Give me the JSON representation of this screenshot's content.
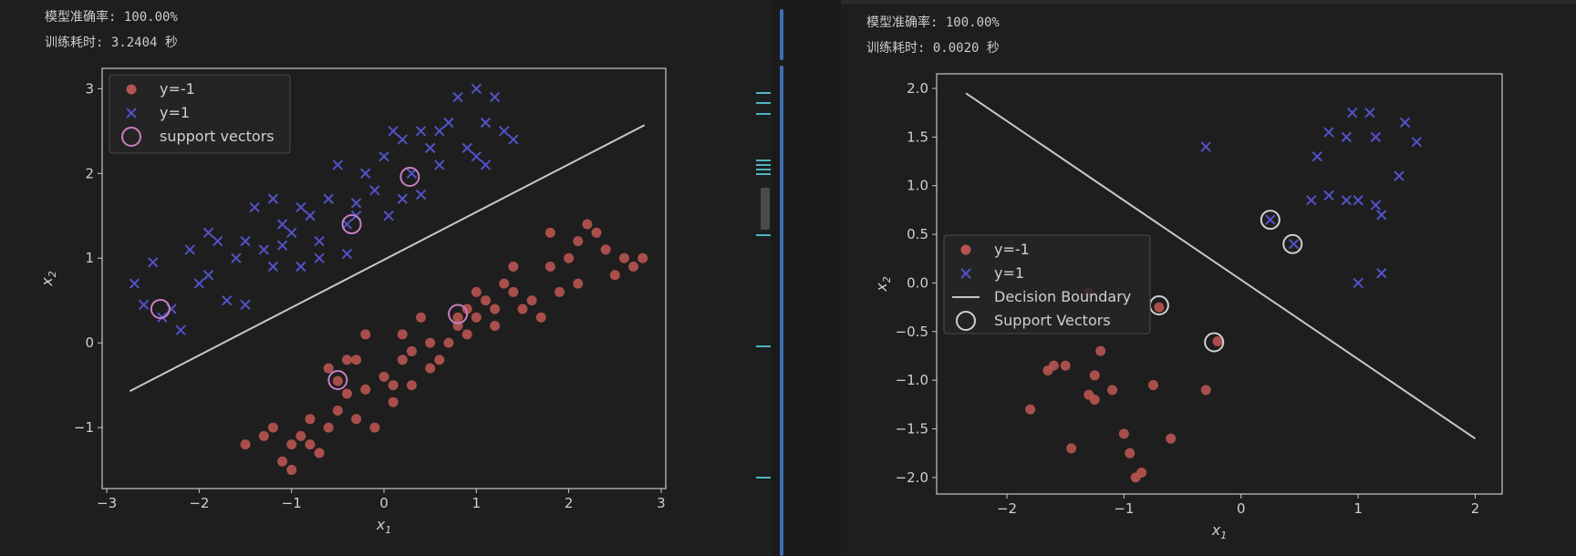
{
  "left_output": {
    "accuracy_line": "模型准确率: 100.00%",
    "time_line": "训练耗时: 3.2404 秒"
  },
  "right_output": {
    "accuracy_line": "模型准确率: 100.00%",
    "time_line": "训练耗时: 0.0020 秒"
  },
  "colors": {
    "neg": "#b85450",
    "pos": "#5252c8",
    "line": "#c8c8c8",
    "sv_left": "#c67fbf",
    "sv_right": "#d0d0d0"
  },
  "chart_data": [
    {
      "type": "scatter",
      "xlabel": "x1",
      "ylabel": "x2",
      "xlim": [
        -3.05,
        3.05
      ],
      "ylim": [
        -1.72,
        3.24
      ],
      "xticks": [
        -3,
        -2,
        -1,
        0,
        1,
        2,
        3
      ],
      "yticks": [
        -1,
        0,
        1,
        2,
        3
      ],
      "legend": {
        "position": "top-left",
        "entries": [
          "y=-1",
          "y=1",
          "support vectors"
        ]
      },
      "grid": false,
      "series": [
        {
          "name": "y=-1",
          "marker": "circle",
          "points": [
            [
              -0.6,
              -0.3
            ],
            [
              -0.3,
              -0.2
            ],
            [
              -0.5,
              -0.45
            ],
            [
              -0.4,
              -0.6
            ],
            [
              -0.2,
              -0.55
            ],
            [
              0,
              -0.4
            ],
            [
              0.1,
              -0.5
            ],
            [
              0.2,
              -0.2
            ],
            [
              0.3,
              -0.1
            ],
            [
              0.5,
              0
            ],
            [
              0.6,
              -0.2
            ],
            [
              0.8,
              0.2
            ],
            [
              0.9,
              0.1
            ],
            [
              1.0,
              0.3
            ],
            [
              1.1,
              0.5
            ],
            [
              1.2,
              0.4
            ],
            [
              1.3,
              0.7
            ],
            [
              1.4,
              0.6
            ],
            [
              1.6,
              0.5
            ],
            [
              1.8,
              0.9
            ],
            [
              2.0,
              1.0
            ],
            [
              2.1,
              1.2
            ],
            [
              2.2,
              1.4
            ],
            [
              2.3,
              1.3
            ],
            [
              2.5,
              0.8
            ],
            [
              2.7,
              0.9
            ],
            [
              2.8,
              1.0
            ],
            [
              -1.2,
              -1.0
            ],
            [
              -1.0,
              -1.2
            ],
            [
              -0.9,
              -1.1
            ],
            [
              -0.7,
              -1.3
            ],
            [
              -0.6,
              -1.0
            ],
            [
              -0.8,
              -0.9
            ],
            [
              -1.1,
              -1.4
            ],
            [
              -1.3,
              -1.1
            ],
            [
              -1.5,
              -1.2
            ],
            [
              -0.5,
              -0.8
            ],
            [
              -0.3,
              -0.9
            ],
            [
              -0.1,
              -1.0
            ],
            [
              0.1,
              -0.7
            ],
            [
              0.3,
              -0.5
            ],
            [
              0.5,
              -0.3
            ],
            [
              0.7,
              0
            ],
            [
              0.9,
              0.4
            ],
            [
              1.2,
              0.2
            ],
            [
              1.5,
              0.4
            ],
            [
              1.7,
              0.3
            ],
            [
              1.9,
              0.6
            ],
            [
              2.1,
              0.7
            ],
            [
              2.4,
              1.1
            ],
            [
              2.6,
              1.0
            ],
            [
              0.4,
              0.3
            ],
            [
              0.2,
              0.1
            ],
            [
              -0.2,
              0.1
            ],
            [
              -0.4,
              -0.2
            ],
            [
              0.8,
              0.3
            ],
            [
              1.0,
              0.6
            ],
            [
              1.4,
              0.9
            ],
            [
              -1.0,
              -1.5
            ],
            [
              -0.8,
              -1.2
            ],
            [
              1.8,
              1.3
            ]
          ]
        },
        {
          "name": "y=1",
          "marker": "x",
          "points": [
            [
              -2.7,
              0.7
            ],
            [
              -2.5,
              0.95
            ],
            [
              -2.4,
              0.3
            ],
            [
              -2.3,
              0.4
            ],
            [
              -2.2,
              0.15
            ],
            [
              -2.1,
              1.1
            ],
            [
              -2.0,
              0.7
            ],
            [
              -1.9,
              1.3
            ],
            [
              -1.8,
              1.2
            ],
            [
              -1.7,
              0.5
            ],
            [
              -1.6,
              1.0
            ],
            [
              -1.5,
              1.2
            ],
            [
              -1.4,
              1.6
            ],
            [
              -1.3,
              1.1
            ],
            [
              -1.2,
              1.7
            ],
            [
              -1.1,
              1.4
            ],
            [
              -1.0,
              1.3
            ],
            [
              -0.9,
              1.6
            ],
            [
              -0.8,
              1.5
            ],
            [
              -0.7,
              1.2
            ],
            [
              -0.6,
              1.7
            ],
            [
              -0.5,
              2.1
            ],
            [
              -0.4,
              1.4
            ],
            [
              -0.3,
              1.5
            ],
            [
              -0.2,
              2.0
            ],
            [
              -0.1,
              1.8
            ],
            [
              0,
              2.2
            ],
            [
              0.1,
              2.5
            ],
            [
              0.2,
              2.4
            ],
            [
              0.3,
              2.0
            ],
            [
              0.4,
              2.5
            ],
            [
              0.5,
              2.3
            ],
            [
              0.6,
              2.1
            ],
            [
              0.7,
              2.6
            ],
            [
              0.8,
              2.9
            ],
            [
              0.9,
              2.3
            ],
            [
              1.0,
              2.2
            ],
            [
              1.1,
              2.6
            ],
            [
              1.2,
              2.9
            ],
            [
              1.3,
              2.5
            ],
            [
              1.4,
              2.4
            ],
            [
              -2.6,
              0.45
            ],
            [
              -1.9,
              0.8
            ],
            [
              -1.5,
              0.45
            ],
            [
              -1.2,
              0.9
            ],
            [
              -0.9,
              0.9
            ],
            [
              -0.7,
              1.0
            ],
            [
              -0.4,
              1.05
            ],
            [
              0.2,
              1.7
            ],
            [
              0.4,
              1.75
            ],
            [
              1.1,
              2.1
            ],
            [
              -1.1,
              1.15
            ],
            [
              -0.3,
              1.65
            ],
            [
              0.05,
              1.5
            ],
            [
              0.6,
              2.5
            ],
            [
              1.0,
              3.0
            ]
          ]
        },
        {
          "name": "support vectors",
          "marker": "ring",
          "points": [
            [
              -2.42,
              0.4
            ],
            [
              -0.5,
              -0.44
            ],
            [
              -0.35,
              1.4
            ],
            [
              0.28,
              1.96
            ],
            [
              0.8,
              0.34
            ]
          ]
        }
      ],
      "boundary": [
        [
          -2.75,
          -0.57
        ],
        [
          2.82,
          2.57
        ]
      ]
    },
    {
      "type": "scatter",
      "xlabel": "x1",
      "ylabel": "x2",
      "xlim": [
        -2.6,
        2.23
      ],
      "ylim": [
        -2.17,
        2.15
      ],
      "xticks": [
        -2,
        -1,
        0,
        1,
        2
      ],
      "yticks": [
        -2.0,
        -1.5,
        -1.0,
        -0.5,
        0.0,
        0.5,
        1.0,
        1.5,
        2.0
      ],
      "legend": {
        "position": "center-left",
        "entries": [
          "y=-1",
          "y=1",
          "Decision Boundary",
          "Support Vectors"
        ]
      },
      "grid": false,
      "series": [
        {
          "name": "y=-1",
          "marker": "circle",
          "points": [
            [
              -1.8,
              -1.3
            ],
            [
              -1.65,
              -0.9
            ],
            [
              -1.6,
              -0.85
            ],
            [
              -1.5,
              -0.85
            ],
            [
              -1.45,
              -1.7
            ],
            [
              -1.3,
              -0.1
            ],
            [
              -1.3,
              -1.15
            ],
            [
              -1.25,
              -0.95
            ],
            [
              -1.25,
              -1.2
            ],
            [
              -1.2,
              -0.7
            ],
            [
              -1.1,
              -1.1
            ],
            [
              -1.0,
              -1.55
            ],
            [
              -0.95,
              -1.75
            ],
            [
              -0.9,
              -2.0
            ],
            [
              -0.85,
              -1.95
            ],
            [
              -0.75,
              -1.05
            ],
            [
              -0.7,
              -0.25
            ],
            [
              -0.6,
              -1.6
            ],
            [
              -0.3,
              -1.1
            ],
            [
              -0.2,
              -0.6
            ]
          ]
        },
        {
          "name": "y=1",
          "marker": "x",
          "points": [
            [
              -0.3,
              1.4
            ],
            [
              0.25,
              0.65
            ],
            [
              0.45,
              0.4
            ],
            [
              0.6,
              0.85
            ],
            [
              0.65,
              1.3
            ],
            [
              0.75,
              1.55
            ],
            [
              0.75,
              0.9
            ],
            [
              0.9,
              1.5
            ],
            [
              0.9,
              0.85
            ],
            [
              0.95,
              1.75
            ],
            [
              1.0,
              0.85
            ],
            [
              1.0,
              0.0
            ],
            [
              1.1,
              1.75
            ],
            [
              1.15,
              1.5
            ],
            [
              1.15,
              0.8
            ],
            [
              1.2,
              0.1
            ],
            [
              1.2,
              0.7
            ],
            [
              1.35,
              1.1
            ],
            [
              1.4,
              1.65
            ],
            [
              1.5,
              1.45
            ]
          ]
        },
        {
          "name": "Support Vectors",
          "marker": "ring",
          "points": [
            [
              -0.7,
              -0.23
            ],
            [
              -0.23,
              -0.61
            ],
            [
              0.25,
              0.65
            ],
            [
              0.44,
              0.4
            ]
          ]
        }
      ],
      "boundary": [
        [
          -2.35,
          1.95
        ],
        [
          2.0,
          -1.6
        ]
      ]
    }
  ]
}
